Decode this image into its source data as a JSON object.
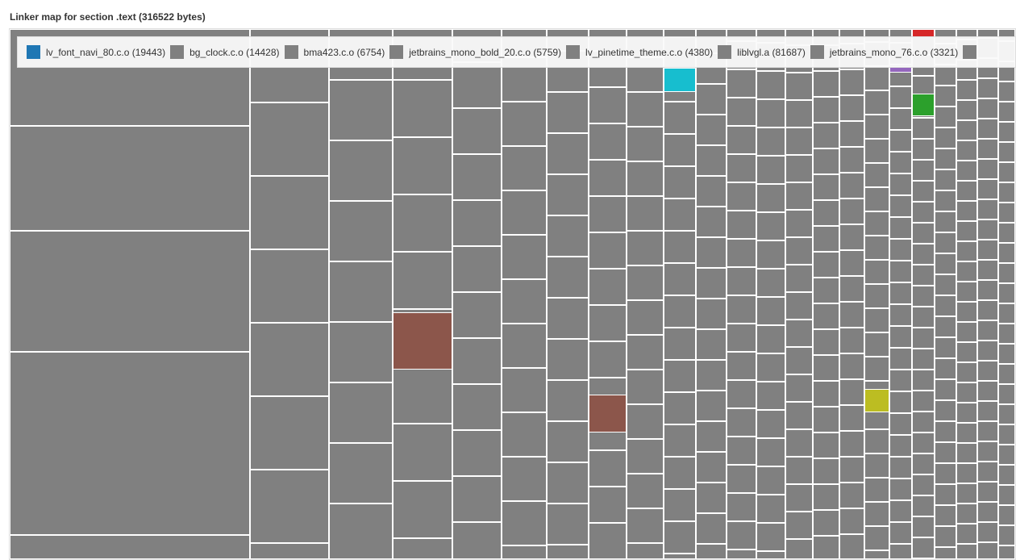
{
  "title": "Linker map for section .text (316522 bytes)",
  "legend": [
    {
      "label": "lv_font_navi_80.c.o (19443)",
      "color": "#1f77b4"
    },
    {
      "label": "bg_clock.c.o (14428)",
      "color": "#808080"
    },
    {
      "label": "bma423.c.o (6754)",
      "color": "#808080"
    },
    {
      "label": "jetbrains_mono_bold_20.c.o (5759)",
      "color": "#808080"
    },
    {
      "label": "lv_pinetime_theme.c.o (4380)",
      "color": "#808080"
    },
    {
      "label": "liblvgl.a (81687)",
      "color": "#808080"
    },
    {
      "label": "jetbrains_mono_76.c.o (3321)",
      "color": "#808080"
    },
    {
      "label": "",
      "color": "#808080"
    }
  ],
  "colors": {
    "default": "#808080",
    "cyan": "#17becf",
    "brown": "#8c564b",
    "olive": "#bcbd22",
    "green": "#2ca02c",
    "red": "#d62728",
    "purple": "#9467bd"
  }
}
